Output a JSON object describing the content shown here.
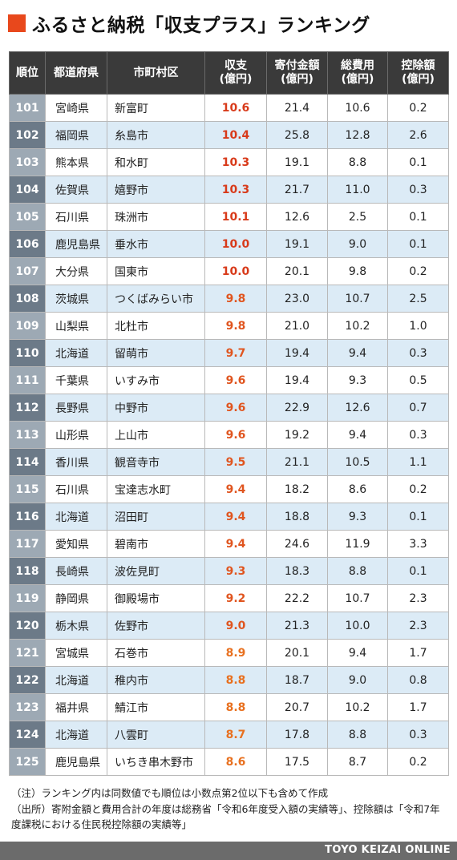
{
  "title": "ふるさと納税「収支プラス」ランキング",
  "colors": {
    "accent": "#e8481c",
    "net_high": "#d83a1a",
    "net_mid": "#e0551f",
    "net_low": "#e8701f"
  },
  "headers": {
    "rank": "順位",
    "pref": "都道府県",
    "city": "市町村区",
    "net": "収支\n(億円)",
    "donation": "寄付金額\n(億円)",
    "cost": "総費用\n(億円)",
    "deduction": "控除額\n(億円)"
  },
  "rows": [
    {
      "rank": "101",
      "pref": "宮崎県",
      "city": "新富町",
      "net": "10.6",
      "donation": "21.4",
      "cost": "10.6",
      "deduction": "0.2"
    },
    {
      "rank": "102",
      "pref": "福岡県",
      "city": "糸島市",
      "net": "10.4",
      "donation": "25.8",
      "cost": "12.8",
      "deduction": "2.6"
    },
    {
      "rank": "103",
      "pref": "熊本県",
      "city": "和水町",
      "net": "10.3",
      "donation": "19.1",
      "cost": "8.8",
      "deduction": "0.1"
    },
    {
      "rank": "104",
      "pref": "佐賀県",
      "city": "嬉野市",
      "net": "10.3",
      "donation": "21.7",
      "cost": "11.0",
      "deduction": "0.3"
    },
    {
      "rank": "105",
      "pref": "石川県",
      "city": "珠洲市",
      "net": "10.1",
      "donation": "12.6",
      "cost": "2.5",
      "deduction": "0.1"
    },
    {
      "rank": "106",
      "pref": "鹿児島県",
      "city": "垂水市",
      "net": "10.0",
      "donation": "19.1",
      "cost": "9.0",
      "deduction": "0.1"
    },
    {
      "rank": "107",
      "pref": "大分県",
      "city": "国東市",
      "net": "10.0",
      "donation": "20.1",
      "cost": "9.8",
      "deduction": "0.2"
    },
    {
      "rank": "108",
      "pref": "茨城県",
      "city": "つくばみらい市",
      "net": "9.8",
      "donation": "23.0",
      "cost": "10.7",
      "deduction": "2.5"
    },
    {
      "rank": "109",
      "pref": "山梨県",
      "city": "北杜市",
      "net": "9.8",
      "donation": "21.0",
      "cost": "10.2",
      "deduction": "1.0"
    },
    {
      "rank": "110",
      "pref": "北海道",
      "city": "留萌市",
      "net": "9.7",
      "donation": "19.4",
      "cost": "9.4",
      "deduction": "0.3"
    },
    {
      "rank": "111",
      "pref": "千葉県",
      "city": "いすみ市",
      "net": "9.6",
      "donation": "19.4",
      "cost": "9.3",
      "deduction": "0.5"
    },
    {
      "rank": "112",
      "pref": "長野県",
      "city": "中野市",
      "net": "9.6",
      "donation": "22.9",
      "cost": "12.6",
      "deduction": "0.7"
    },
    {
      "rank": "113",
      "pref": "山形県",
      "city": "上山市",
      "net": "9.6",
      "donation": "19.2",
      "cost": "9.4",
      "deduction": "0.3"
    },
    {
      "rank": "114",
      "pref": "香川県",
      "city": "観音寺市",
      "net": "9.5",
      "donation": "21.1",
      "cost": "10.5",
      "deduction": "1.1"
    },
    {
      "rank": "115",
      "pref": "石川県",
      "city": "宝達志水町",
      "net": "9.4",
      "donation": "18.2",
      "cost": "8.6",
      "deduction": "0.2"
    },
    {
      "rank": "116",
      "pref": "北海道",
      "city": "沼田町",
      "net": "9.4",
      "donation": "18.8",
      "cost": "9.3",
      "deduction": "0.1"
    },
    {
      "rank": "117",
      "pref": "愛知県",
      "city": "碧南市",
      "net": "9.4",
      "donation": "24.6",
      "cost": "11.9",
      "deduction": "3.3"
    },
    {
      "rank": "118",
      "pref": "長崎県",
      "city": "波佐見町",
      "net": "9.3",
      "donation": "18.3",
      "cost": "8.8",
      "deduction": "0.1"
    },
    {
      "rank": "119",
      "pref": "静岡県",
      "city": "御殿場市",
      "net": "9.2",
      "donation": "22.2",
      "cost": "10.7",
      "deduction": "2.3"
    },
    {
      "rank": "120",
      "pref": "栃木県",
      "city": "佐野市",
      "net": "9.0",
      "donation": "21.3",
      "cost": "10.0",
      "deduction": "2.3"
    },
    {
      "rank": "121",
      "pref": "宮城県",
      "city": "石巻市",
      "net": "8.9",
      "donation": "20.1",
      "cost": "9.4",
      "deduction": "1.7"
    },
    {
      "rank": "122",
      "pref": "北海道",
      "city": "稚内市",
      "net": "8.8",
      "donation": "18.7",
      "cost": "9.0",
      "deduction": "0.8"
    },
    {
      "rank": "123",
      "pref": "福井県",
      "city": "鯖江市",
      "net": "8.8",
      "donation": "20.7",
      "cost": "10.2",
      "deduction": "1.7"
    },
    {
      "rank": "124",
      "pref": "北海道",
      "city": "八雲町",
      "net": "8.7",
      "donation": "17.8",
      "cost": "8.8",
      "deduction": "0.3"
    },
    {
      "rank": "125",
      "pref": "鹿児島県",
      "city": "いちき串木野市",
      "net": "8.6",
      "donation": "17.5",
      "cost": "8.7",
      "deduction": "0.2"
    }
  ],
  "notes": [
    "（注）ランキング内は同数値でも順位は小数点第2位以下も含めて作成",
    "（出所）寄附金額と費用合計の年度は総務省「令和6年度受入額の実績等」、控除額は「令和7年度課税における住民税控除額の実績等」"
  ],
  "footer": "TOYO KEIZAI ONLINE"
}
